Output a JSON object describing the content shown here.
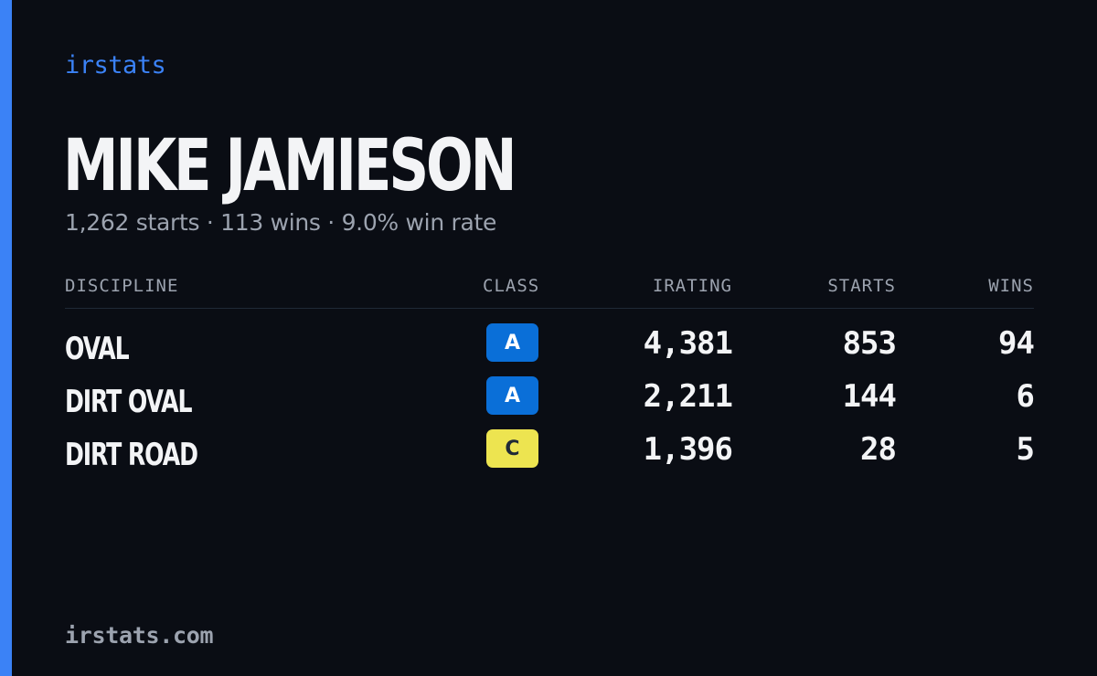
{
  "brand": "irstats",
  "driver": {
    "name": "MIKE JAMIESON",
    "summary": "1,262 starts · 113 wins · 9.0% win rate"
  },
  "table": {
    "headers": {
      "discipline": "DISCIPLINE",
      "class": "CLASS",
      "irating": "IRATING",
      "starts": "STARTS",
      "wins": "WINS"
    },
    "rows": [
      {
        "discipline": "OVAL",
        "class": "A",
        "class_color": "#0a6fd8",
        "class_text_color": "#ffffff",
        "irating": "4,381",
        "starts": "853",
        "wins": "94"
      },
      {
        "discipline": "DIRT OVAL",
        "class": "A",
        "class_color": "#0a6fd8",
        "class_text_color": "#ffffff",
        "irating": "2,211",
        "starts": "144",
        "wins": "6"
      },
      {
        "discipline": "DIRT ROAD",
        "class": "C",
        "class_color": "#ede450",
        "class_text_color": "#1f2937",
        "irating": "1,396",
        "starts": "28",
        "wins": "5"
      }
    ]
  },
  "footer": "irstats.com",
  "colors": {
    "accent": "#3b82f6",
    "background": "#0a0d14",
    "text": "#f3f4f6",
    "muted": "#9ca3af"
  }
}
